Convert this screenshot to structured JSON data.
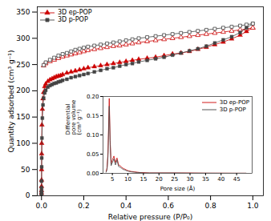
{
  "chart_data": [
    {
      "type": "line",
      "xlabel": "Relative pressure (P/P₀)",
      "ylabel": "Quantity adsorbed (cm³ g⁻¹)",
      "xlim": [
        -0.02,
        1.05
      ],
      "ylim": [
        0,
        360
      ],
      "xticks": [
        {
          "value": 0,
          "label": "0.0"
        },
        0.2,
        0.4,
        0.6,
        0.8,
        {
          "value": 1,
          "label": "1.0"
        }
      ],
      "yticks": [
        0,
        50,
        100,
        150,
        200,
        250,
        300,
        350
      ],
      "legend": "upper left",
      "series": [
        {
          "name": "3D ep-POP",
          "color": "#cc0000",
          "marker": "triangle",
          "x": [
            3e-05,
            6e-05,
            0.0001,
            0.0002,
            0.0004,
            0.0008,
            0.001,
            0.002,
            0.004,
            0.007,
            0.01,
            0.015,
            0.02,
            0.03,
            0.04,
            0.05,
            0.06,
            0.07,
            0.08,
            0.09,
            0.1,
            0.12,
            0.14,
            0.16,
            0.18,
            0.2,
            0.22,
            0.25,
            0.28,
            0.31,
            0.34,
            0.37,
            0.4,
            0.43,
            0.46,
            0.5,
            0.54,
            0.58,
            0.62,
            0.66,
            0.7,
            0.74,
            0.78,
            0.82,
            0.86,
            0.9,
            0.94,
            0.97,
            1.0
          ],
          "values": [
            5,
            10,
            18,
            30,
            50,
            80,
            100,
            135,
            165,
            185,
            197,
            208,
            213,
            218,
            221,
            223,
            225,
            227,
            228,
            229,
            231,
            234,
            236,
            238,
            240,
            242,
            244,
            246,
            248,
            250,
            252,
            254,
            256,
            258,
            260,
            262,
            264,
            267,
            270,
            272,
            275,
            279,
            283,
            288,
            293,
            299,
            306,
            313,
            320
          ]
        },
        {
          "name": "3D ep-POP",
          "color": "#cc0000",
          "marker": "triangle-open",
          "x": [
            1.0,
            0.97,
            0.94,
            0.9,
            0.86,
            0.82,
            0.78,
            0.74,
            0.7,
            0.66,
            0.62,
            0.58,
            0.54,
            0.5,
            0.46,
            0.43,
            0.4,
            0.37,
            0.34,
            0.31,
            0.28,
            0.25,
            0.22,
            0.2,
            0.18,
            0.16,
            0.14,
            0.12,
            0.1,
            0.08,
            0.06,
            0.04,
            0.02,
            0.01
          ],
          "values": [
            320,
            318,
            316,
            314,
            312,
            310,
            308,
            306,
            304,
            302,
            300,
            298,
            296,
            294,
            292,
            290,
            288,
            286,
            285,
            283,
            281,
            279,
            277,
            275,
            273,
            271,
            269,
            267,
            265,
            262,
            259,
            256,
            252,
            248
          ]
        },
        {
          "name": "3D p-POP",
          "color": "#444444",
          "marker": "square",
          "x": [
            3e-05,
            6e-05,
            0.0001,
            0.0002,
            0.0004,
            0.0008,
            0.001,
            0.002,
            0.004,
            0.007,
            0.01,
            0.015,
            0.02,
            0.03,
            0.04,
            0.05,
            0.06,
            0.07,
            0.08,
            0.09,
            0.1,
            0.12,
            0.14,
            0.16,
            0.18,
            0.2,
            0.22,
            0.25,
            0.28,
            0.31,
            0.34,
            0.37,
            0.4,
            0.43,
            0.46,
            0.5,
            0.54,
            0.58,
            0.62,
            0.66,
            0.7,
            0.74,
            0.78,
            0.82,
            0.86,
            0.9,
            0.94,
            0.97,
            1.0
          ],
          "values": [
            2,
            5,
            9,
            15,
            28,
            55,
            72,
            110,
            148,
            173,
            186,
            196,
            201,
            207,
            210,
            212,
            214,
            215,
            217,
            218,
            220,
            222,
            225,
            227,
            229,
            231,
            233,
            236,
            239,
            242,
            244,
            247,
            250,
            252,
            255,
            258,
            261,
            264,
            268,
            272,
            276,
            280,
            285,
            291,
            297,
            303,
            311,
            320,
            328
          ]
        },
        {
          "name": "3D p-POP",
          "color": "#444444",
          "marker": "square-open",
          "x": [
            1.0,
            0.97,
            0.94,
            0.9,
            0.86,
            0.82,
            0.78,
            0.74,
            0.7,
            0.66,
            0.62,
            0.58,
            0.54,
            0.5,
            0.46,
            0.43,
            0.4,
            0.37,
            0.34,
            0.31,
            0.28,
            0.25,
            0.22,
            0.2,
            0.18,
            0.16,
            0.14,
            0.12,
            0.1,
            0.08,
            0.06,
            0.04,
            0.02,
            0.01
          ],
          "values": [
            328,
            326,
            324,
            322,
            320,
            318,
            316,
            314,
            312,
            310,
            308,
            306,
            304,
            302,
            300,
            298,
            296,
            294,
            292,
            290,
            288,
            286,
            284,
            282,
            280,
            278,
            275,
            272,
            270,
            267,
            263,
            259,
            254,
            249
          ]
        }
      ]
    },
    {
      "type": "line",
      "xlabel": "Pore size (Å)",
      "ylabel": "Differential\npore volume\n(cm³ g⁻¹)",
      "xlim": [
        2,
        50
      ],
      "ylim": [
        0,
        0.2
      ],
      "xticks": [
        5,
        10,
        15,
        20,
        25,
        30,
        35,
        40,
        45
      ],
      "yticks": [
        {
          "value": 0,
          "label": "0.00"
        },
        0.05,
        {
          "value": 0.1,
          "label": "0.10"
        },
        0.15,
        {
          "value": 0.2,
          "label": "0.20"
        }
      ],
      "legend": "upper right",
      "series": [
        {
          "name": "3D ep-POP",
          "color": "#cc0000",
          "x": [
            3.0,
            3.3,
            3.6,
            4.0,
            4.3,
            4.6,
            5.0,
            5.5,
            6.0,
            6.5,
            7.0,
            7.5,
            8.0,
            8.5,
            9.0,
            9.5,
            10.0,
            11.0,
            12.0,
            13.0,
            14.0,
            15.0,
            17.0,
            20.0,
            25.0,
            30.0,
            35.0,
            40.0,
            45.0,
            48.0
          ],
          "values": [
            0.005,
            0.015,
            0.055,
            0.195,
            0.085,
            0.025,
            0.035,
            0.045,
            0.028,
            0.04,
            0.022,
            0.02,
            0.016,
            0.013,
            0.011,
            0.009,
            0.007,
            0.005,
            0.004,
            0.003,
            0.002,
            0.002,
            0.001,
            0.001,
            0.001,
            0.001,
            0.0005,
            0.0005,
            0.0003,
            0.0003
          ]
        },
        {
          "name": "3D p-POP",
          "color": "#444444",
          "x": [
            3.0,
            3.3,
            3.6,
            4.0,
            4.3,
            4.6,
            5.0,
            5.5,
            6.0,
            6.5,
            7.0,
            7.5,
            8.0,
            8.5,
            9.0,
            9.5,
            10.0,
            11.0,
            12.0,
            13.0,
            14.0,
            15.0,
            17.0,
            20.0,
            25.0,
            30.0,
            35.0,
            40.0,
            45.0,
            48.0
          ],
          "values": [
            0.003,
            0.01,
            0.045,
            0.175,
            0.075,
            0.02,
            0.028,
            0.038,
            0.022,
            0.035,
            0.018,
            0.016,
            0.013,
            0.01,
            0.009,
            0.007,
            0.006,
            0.004,
            0.003,
            0.002,
            0.002,
            0.001,
            0.001,
            0.001,
            0.001,
            0.0005,
            0.0005,
            0.0003,
            0.0003,
            0.0003
          ]
        }
      ]
    }
  ]
}
